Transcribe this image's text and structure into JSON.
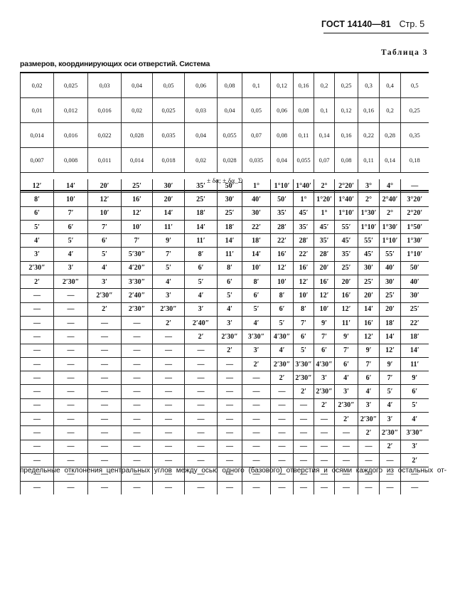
{
  "header": {
    "standard": "ГОСТ 14140—81",
    "page": "Стр. 5"
  },
  "table_number": "Таблица 3",
  "subtitle": "размеров, координирующих оси отверстий. Система",
  "upper_table": {
    "rows": [
      [
        "0,02",
        "0,025",
        "0,03",
        "0,04",
        "0,05",
        "0,06",
        "0,08",
        "0,1",
        "0,12",
        "0,16",
        "0,2",
        "0,25",
        "0,3",
        "0,4",
        "0,5"
      ],
      [
        "0,01",
        "0,012",
        "0,016",
        "0,02",
        "0,025",
        "0,03",
        "0,04",
        "0,05",
        "0,06",
        "0,08",
        "0,1",
        "0,12",
        "0,16",
        "0,2",
        "0,25"
      ],
      [
        "0,014",
        "0,016",
        "0,022",
        "0,028",
        "0,035",
        "0,04",
        "0,055",
        "0,07",
        "0,08",
        "0,11",
        "0,14",
        "0,16",
        "0,22",
        "0,28",
        "0,35"
      ],
      [
        "0,007",
        "0,008",
        "0,011",
        "0,014",
        "0,018",
        "0,02",
        "0,028",
        "0,035",
        "0,04",
        "0,055",
        "0,07",
        "0,08",
        "0,11",
        "0,14",
        "0,18"
      ]
    ],
    "delta_label": "± δα; ± δα_Σ"
  },
  "lower_table": {
    "rows": [
      [
        "12′",
        "14′",
        "20′",
        "25′",
        "30′",
        "35′",
        "50′",
        "1°",
        "1°10′",
        "1°40′",
        "2°",
        "2°20′",
        "3°",
        "4°",
        "—"
      ],
      [
        "8′",
        "10′",
        "12′",
        "16′",
        "20′",
        "25′",
        "30′",
        "40′",
        "50′",
        "1°",
        "1°20′",
        "1°40′",
        "2°",
        "2°40′",
        "3°20′"
      ],
      [
        "6′",
        "7′",
        "10′",
        "12′",
        "14′",
        "18′",
        "25′",
        "30′",
        "35′",
        "45′",
        "1°",
        "1°10′",
        "1°30′",
        "2°",
        "2°20′"
      ],
      [
        "5′",
        "6′",
        "7′",
        "10′",
        "11′",
        "14′",
        "18′",
        "22′",
        "28′",
        "35′",
        "45′",
        "55′",
        "1°10′",
        "1°30′",
        "1°50′"
      ],
      [
        "4′",
        "5′",
        "6′",
        "7′",
        "9′",
        "11′",
        "14′",
        "18′",
        "22′",
        "28′",
        "35′",
        "45′",
        "55′",
        "1°10′",
        "1°30′"
      ],
      [
        "3′",
        "4′",
        "5′",
        "5′30″",
        "7′",
        "8′",
        "11′",
        "14′",
        "16′",
        "22′",
        "28′",
        "35′",
        "45′",
        "55′",
        "1°10′"
      ],
      [
        "2′30″",
        "3′",
        "4′",
        "4′20″",
        "5′",
        "6′",
        "8′",
        "10′",
        "12′",
        "16′",
        "20′",
        "25′",
        "30′",
        "40′",
        "50′"
      ],
      [
        "2′",
        "2′30″",
        "3′",
        "3′30″",
        "4′",
        "5′",
        "6′",
        "8′",
        "10′",
        "12′",
        "16′",
        "20′",
        "25′",
        "30′",
        "40′"
      ],
      [
        "—",
        "—",
        "2′30″",
        "2′40″",
        "3′",
        "4′",
        "5′",
        "6′",
        "8′",
        "10′",
        "12′",
        "16′",
        "20′",
        "25′",
        "30′"
      ],
      [
        "—",
        "—",
        "2′",
        "2′30″",
        "2′30″",
        "3′",
        "4′",
        "5′",
        "6′",
        "8′",
        "10′",
        "12′",
        "14′",
        "20′",
        "25′"
      ],
      [
        "—",
        "—",
        "—",
        "—",
        "2′",
        "2′40″",
        "3′",
        "4′",
        "5′",
        "7′",
        "9′",
        "11′",
        "16′",
        "18′",
        "22′"
      ],
      [
        "—",
        "—",
        "—",
        "—",
        "—",
        "2′",
        "2′30″",
        "3′30″",
        "4′30″",
        "6′",
        "7′",
        "9′",
        "12′",
        "14′",
        "18′"
      ],
      [
        "—",
        "—",
        "—",
        "—",
        "—",
        "—",
        "2′",
        "3′",
        "4′",
        "5′",
        "6′",
        "7′",
        "9′",
        "12′",
        "14′"
      ],
      [
        "—",
        "—",
        "—",
        "—",
        "—",
        "—",
        "—",
        "2′",
        "2′30″",
        "3′30″",
        "4′30″",
        "6′",
        "7′",
        "9′",
        "11′"
      ],
      [
        "—",
        "—",
        "—",
        "—",
        "—",
        "—",
        "—",
        "—",
        "2′",
        "2′30″",
        "3′",
        "4′",
        "6′",
        "7′",
        "9′"
      ],
      [
        "—",
        "—",
        "—",
        "—",
        "—",
        "—",
        "—",
        "—",
        "—",
        "2′",
        "2′30″",
        "3′",
        "4′",
        "5′",
        "6′"
      ],
      [
        "—",
        "—",
        "—",
        "—",
        "—",
        "—",
        "—",
        "—",
        "—",
        "—",
        "2′",
        "2′30″",
        "3′",
        "4′",
        "5′"
      ],
      [
        "—",
        "—",
        "—",
        "—",
        "—",
        "—",
        "—",
        "—",
        "—",
        "—",
        "—",
        "2′",
        "2′30″",
        "3′",
        "4′"
      ],
      [
        "—",
        "—",
        "—",
        "—",
        "—",
        "—",
        "—",
        "—",
        "—",
        "—",
        "—",
        "—",
        "2′",
        "2′30″",
        "3′30″"
      ],
      [
        "—",
        "—",
        "—",
        "—",
        "—",
        "—",
        "—",
        "—",
        "—",
        "—",
        "—",
        "—",
        "—",
        "2′",
        "3′"
      ],
      [
        "—",
        "—",
        "—",
        "—",
        "—",
        "—",
        "—",
        "—",
        "—",
        "—",
        "—",
        "—",
        "—",
        "—",
        "2′"
      ],
      [
        "—",
        "—",
        "—",
        "—",
        "—",
        "—",
        "—",
        "—",
        "—",
        "—",
        "—",
        "—",
        "—",
        "—",
        "—"
      ],
      [
        "—",
        "—",
        "—",
        "—",
        "—",
        "—",
        "—",
        "—",
        "—",
        "—",
        "—",
        "—",
        "—",
        "—",
        "—"
      ]
    ]
  },
  "footer_text": "предельные отклонения центральных углов между осью одного (базового) отверстия и осями каждого из остальных от-"
}
